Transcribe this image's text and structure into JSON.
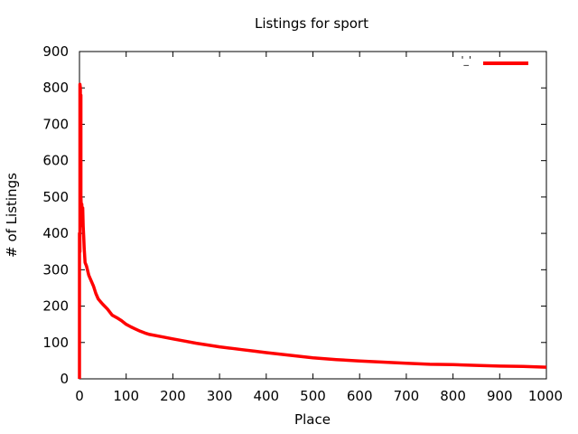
{
  "chart_data": {
    "type": "line",
    "title": "Listings for sport",
    "xlabel": "Place",
    "ylabel": "# of Listings",
    "xlim": [
      0,
      1000
    ],
    "ylim": [
      0,
      900
    ],
    "xticks": [
      0,
      100,
      200,
      300,
      400,
      500,
      600,
      700,
      800,
      900,
      1000
    ],
    "yticks": [
      0,
      100,
      200,
      300,
      400,
      500,
      600,
      700,
      800,
      900
    ],
    "grid": false,
    "legend_position": "top-right",
    "series": [
      {
        "name": "'_'",
        "color": "#ff0000",
        "x": [
          0,
          0,
          1,
          1,
          2,
          2,
          3,
          3,
          4,
          5,
          6,
          7,
          8,
          9,
          10,
          12,
          15,
          20,
          25,
          30,
          35,
          40,
          45,
          50,
          60,
          70,
          80,
          90,
          100,
          110,
          120,
          130,
          140,
          150,
          175,
          200,
          225,
          250,
          275,
          300,
          325,
          350,
          375,
          400,
          450,
          500,
          550,
          600,
          650,
          700,
          750,
          800,
          850,
          900,
          950,
          1000
        ],
        "y": [
          0,
          400,
          350,
          810,
          800,
          420,
          780,
          500,
          470,
          480,
          440,
          470,
          420,
          390,
          360,
          320,
          310,
          285,
          270,
          255,
          235,
          220,
          212,
          205,
          192,
          175,
          168,
          160,
          150,
          143,
          137,
          131,
          126,
          122,
          116,
          110,
          104,
          98,
          93,
          88,
          84,
          80,
          76,
          72,
          65,
          58,
          53,
          49,
          46,
          43,
          40,
          39,
          37,
          35,
          34,
          32
        ]
      }
    ]
  }
}
